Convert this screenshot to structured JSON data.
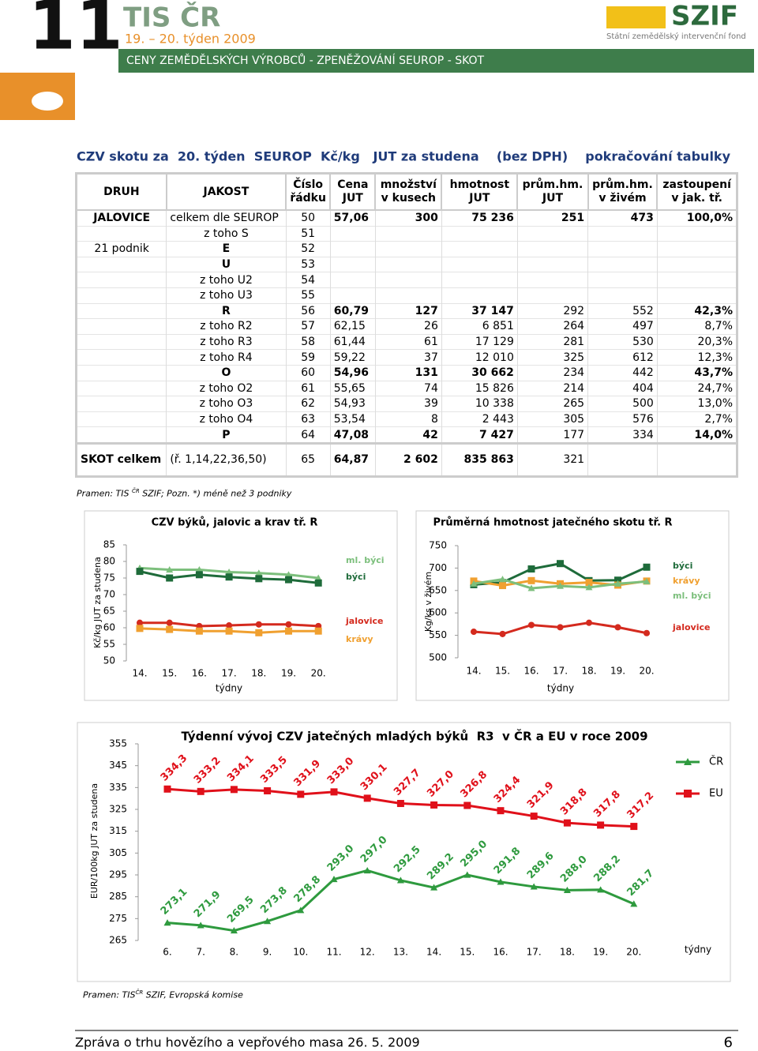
{
  "header": {
    "number": "11",
    "title": "TIS ČR",
    "subtitle": "19. – 20. týden 2009",
    "band": "CENY ZEMĚDĚLSKÝCH VÝROBCŮ - ZPENĚŽOVÁNÍ SEUROP - SKOT",
    "logo": "SZIF",
    "logo_sub": "Státní zemědělský intervenční fond"
  },
  "heading": {
    "left": "CZV skotu za  20. týden  SEUROP  Kč/kg   JUT za studena    (bez DPH)",
    "right": "pokračování tabulky"
  },
  "table": {
    "columns": [
      "DRUH",
      "JAKOST",
      "Číslo\nřádku",
      "Cena\nJUT",
      "množství\nv kusech",
      "hmotnost\nJUT",
      "prům.hm.\nJUT",
      "prům.hm.\nv živém",
      "zastoupení\nv jak. tř."
    ],
    "rows": [
      [
        "JALOVICE",
        "celkem dle SEUROP",
        "50",
        "57,06",
        "300",
        "75 236",
        "251",
        "473",
        "100,0%"
      ],
      [
        null,
        "z toho S",
        "51",
        null,
        null,
        null,
        null,
        null,
        null
      ],
      [
        "21 podnik",
        "E",
        "52",
        null,
        null,
        null,
        null,
        null,
        null
      ],
      [
        null,
        "U",
        "53",
        null,
        null,
        null,
        null,
        null,
        null
      ],
      [
        null,
        "z toho U2",
        "54",
        null,
        null,
        null,
        null,
        null,
        null
      ],
      [
        null,
        "z toho U3",
        "55",
        null,
        null,
        null,
        null,
        null,
        null
      ],
      [
        null,
        "R",
        "56",
        "60,79",
        "127",
        "37 147",
        "292",
        "552",
        "42,3%"
      ],
      [
        null,
        "z toho R2",
        "57",
        "62,15",
        "26",
        "6 851",
        "264",
        "497",
        "8,7%"
      ],
      [
        null,
        "z toho R3",
        "58",
        "61,44",
        "61",
        "17 129",
        "281",
        "530",
        "20,3%"
      ],
      [
        null,
        "z toho R4",
        "59",
        "59,22",
        "37",
        "12 010",
        "325",
        "612",
        "12,3%"
      ],
      [
        null,
        "O",
        "60",
        "54,96",
        "131",
        "30 662",
        "234",
        "442",
        "43,7%"
      ],
      [
        null,
        "z toho O2",
        "61",
        "55,65",
        "74",
        "15 826",
        "214",
        "404",
        "24,7%"
      ],
      [
        null,
        "z toho O3",
        "62",
        "54,93",
        "39",
        "10 338",
        "265",
        "500",
        "13,0%"
      ],
      [
        null,
        "z toho O4",
        "63",
        "53,54",
        "8",
        "2 443",
        "305",
        "576",
        "2,7%"
      ],
      [
        null,
        "P",
        "64",
        "47,08",
        "42",
        "7 427",
        "177",
        "334",
        "14,0%"
      ],
      [
        "SKOT celkem",
        "(ř. 1,14,22,36,50)",
        "65",
        "64,87",
        "2 602",
        "835 863",
        "321",
        null,
        null
      ]
    ]
  },
  "note": {
    "prefix": "Pramen: TIS ",
    "sup": "ČR",
    "rest": " SZIF; Pozn. *) méně než 3 podniky"
  },
  "chart_data": [
    {
      "type": "line",
      "title": "CZV býků, jalovic a krav tř. R",
      "y_label": "Kč/kg JUT za studena",
      "x_label": "týdny",
      "categories": [
        "14.",
        "15.",
        "16.",
        "17.",
        "18.",
        "19.",
        "20."
      ],
      "ylim": [
        50,
        85
      ],
      "yticks": [
        50,
        55,
        60,
        65,
        70,
        75,
        80,
        85
      ],
      "legend": "right",
      "series": [
        {
          "name": "ml. býci",
          "color": "#7cbf7c",
          "marker": "triangle",
          "values": [
            78,
            77.5,
            77.5,
            76.8,
            76.5,
            76,
            75
          ]
        },
        {
          "name": "býci",
          "color": "#1e6b3a",
          "marker": "square",
          "values": [
            77,
            75,
            76,
            75.3,
            74.8,
            74.5,
            73.5
          ]
        },
        {
          "name": "jalovice",
          "color": "#d42a1e",
          "marker": "circle",
          "values": [
            61.5,
            61.5,
            60.5,
            60.7,
            61,
            61,
            60.5
          ]
        },
        {
          "name": "krávy",
          "color": "#f0a030",
          "marker": "square",
          "values": [
            59.8,
            59.5,
            59,
            59,
            58.5,
            59,
            59
          ]
        }
      ]
    },
    {
      "type": "line",
      "title": "Průměrná hmotnost jatečného skotu tř. R",
      "y_label": "Kg/ks v živém",
      "x_label": "týdny",
      "categories": [
        "14.",
        "15.",
        "16.",
        "17.",
        "18.",
        "19.",
        "20."
      ],
      "ylim": [
        500,
        750
      ],
      "yticks": [
        500,
        550,
        600,
        650,
        700,
        750
      ],
      "legend": "right",
      "series": [
        {
          "name": "býci",
          "color": "#1e6b3a",
          "marker": "square",
          "values": [
            663,
            668,
            698,
            710,
            672,
            673,
            702
          ]
        },
        {
          "name": "krávy",
          "color": "#f0a030",
          "marker": "square",
          "values": [
            671,
            661,
            672,
            665,
            668,
            662,
            671
          ]
        },
        {
          "name": "ml. býci",
          "color": "#7cbf7c",
          "marker": "triangle",
          "values": [
            665,
            675,
            655,
            660,
            657,
            665,
            670
          ]
        },
        {
          "name": "jalovice",
          "color": "#d42a1e",
          "marker": "circle",
          "values": [
            558,
            553,
            573,
            568,
            578,
            568,
            555
          ]
        }
      ]
    },
    {
      "type": "line",
      "title": "Týdenní vývoj CZV jatečných mladých býků  R3  v ČR a EU v roce 2009",
      "y_label": "EUR/100kg  JUT za studena",
      "x_label": "týdny",
      "categories": [
        "6.",
        "7.",
        "8.",
        "9.",
        "10.",
        "11.",
        "12.",
        "13.",
        "14.",
        "15.",
        "16.",
        "17.",
        "18.",
        "19.",
        "20."
      ],
      "ylim": [
        265,
        355
      ],
      "yticks": [
        265,
        275,
        285,
        295,
        305,
        315,
        325,
        335,
        345,
        355
      ],
      "legend": "right",
      "series": [
        {
          "name": "ČR",
          "color": "#2e9a3e",
          "marker": "triangle",
          "values": [
            273.1,
            271.9,
            269.5,
            273.8,
            278.8,
            293.0,
            297.0,
            292.5,
            289.2,
            295.0,
            291.8,
            289.6,
            288.0,
            288.2,
            281.7
          ],
          "value_labels": [
            "273,1",
            "271,9",
            "269,5",
            "273,8",
            "278,8",
            "293,0",
            "297,0",
            "292,5",
            "289,2",
            "295,0",
            "291,8",
            "289,6",
            "288,0",
            "288,2",
            "281,7"
          ]
        },
        {
          "name": "EU",
          "color": "#e0101a",
          "marker": "square",
          "values": [
            334.3,
            333.2,
            334.1,
            333.5,
            331.9,
            333.0,
            330.1,
            327.7,
            327.0,
            326.8,
            324.4,
            321.9,
            318.8,
            317.8,
            317.2
          ],
          "value_labels": [
            "334,3",
            "333,2",
            "334,1",
            "333,5",
            "331,9",
            "333,0",
            "330,1",
            "327,7",
            "327,0",
            "326,8",
            "324,4",
            "321,9",
            "318,8",
            "317,8",
            "317,2"
          ]
        }
      ]
    }
  ],
  "source": {
    "prefix": "Pramen: TIS",
    "sup": "ČR",
    "rest": " SZIF, Evropská komise"
  },
  "footer": {
    "text": "Zpráva o trhu hovězího a vepřového masa 26. 5. 2009",
    "page": "6"
  }
}
